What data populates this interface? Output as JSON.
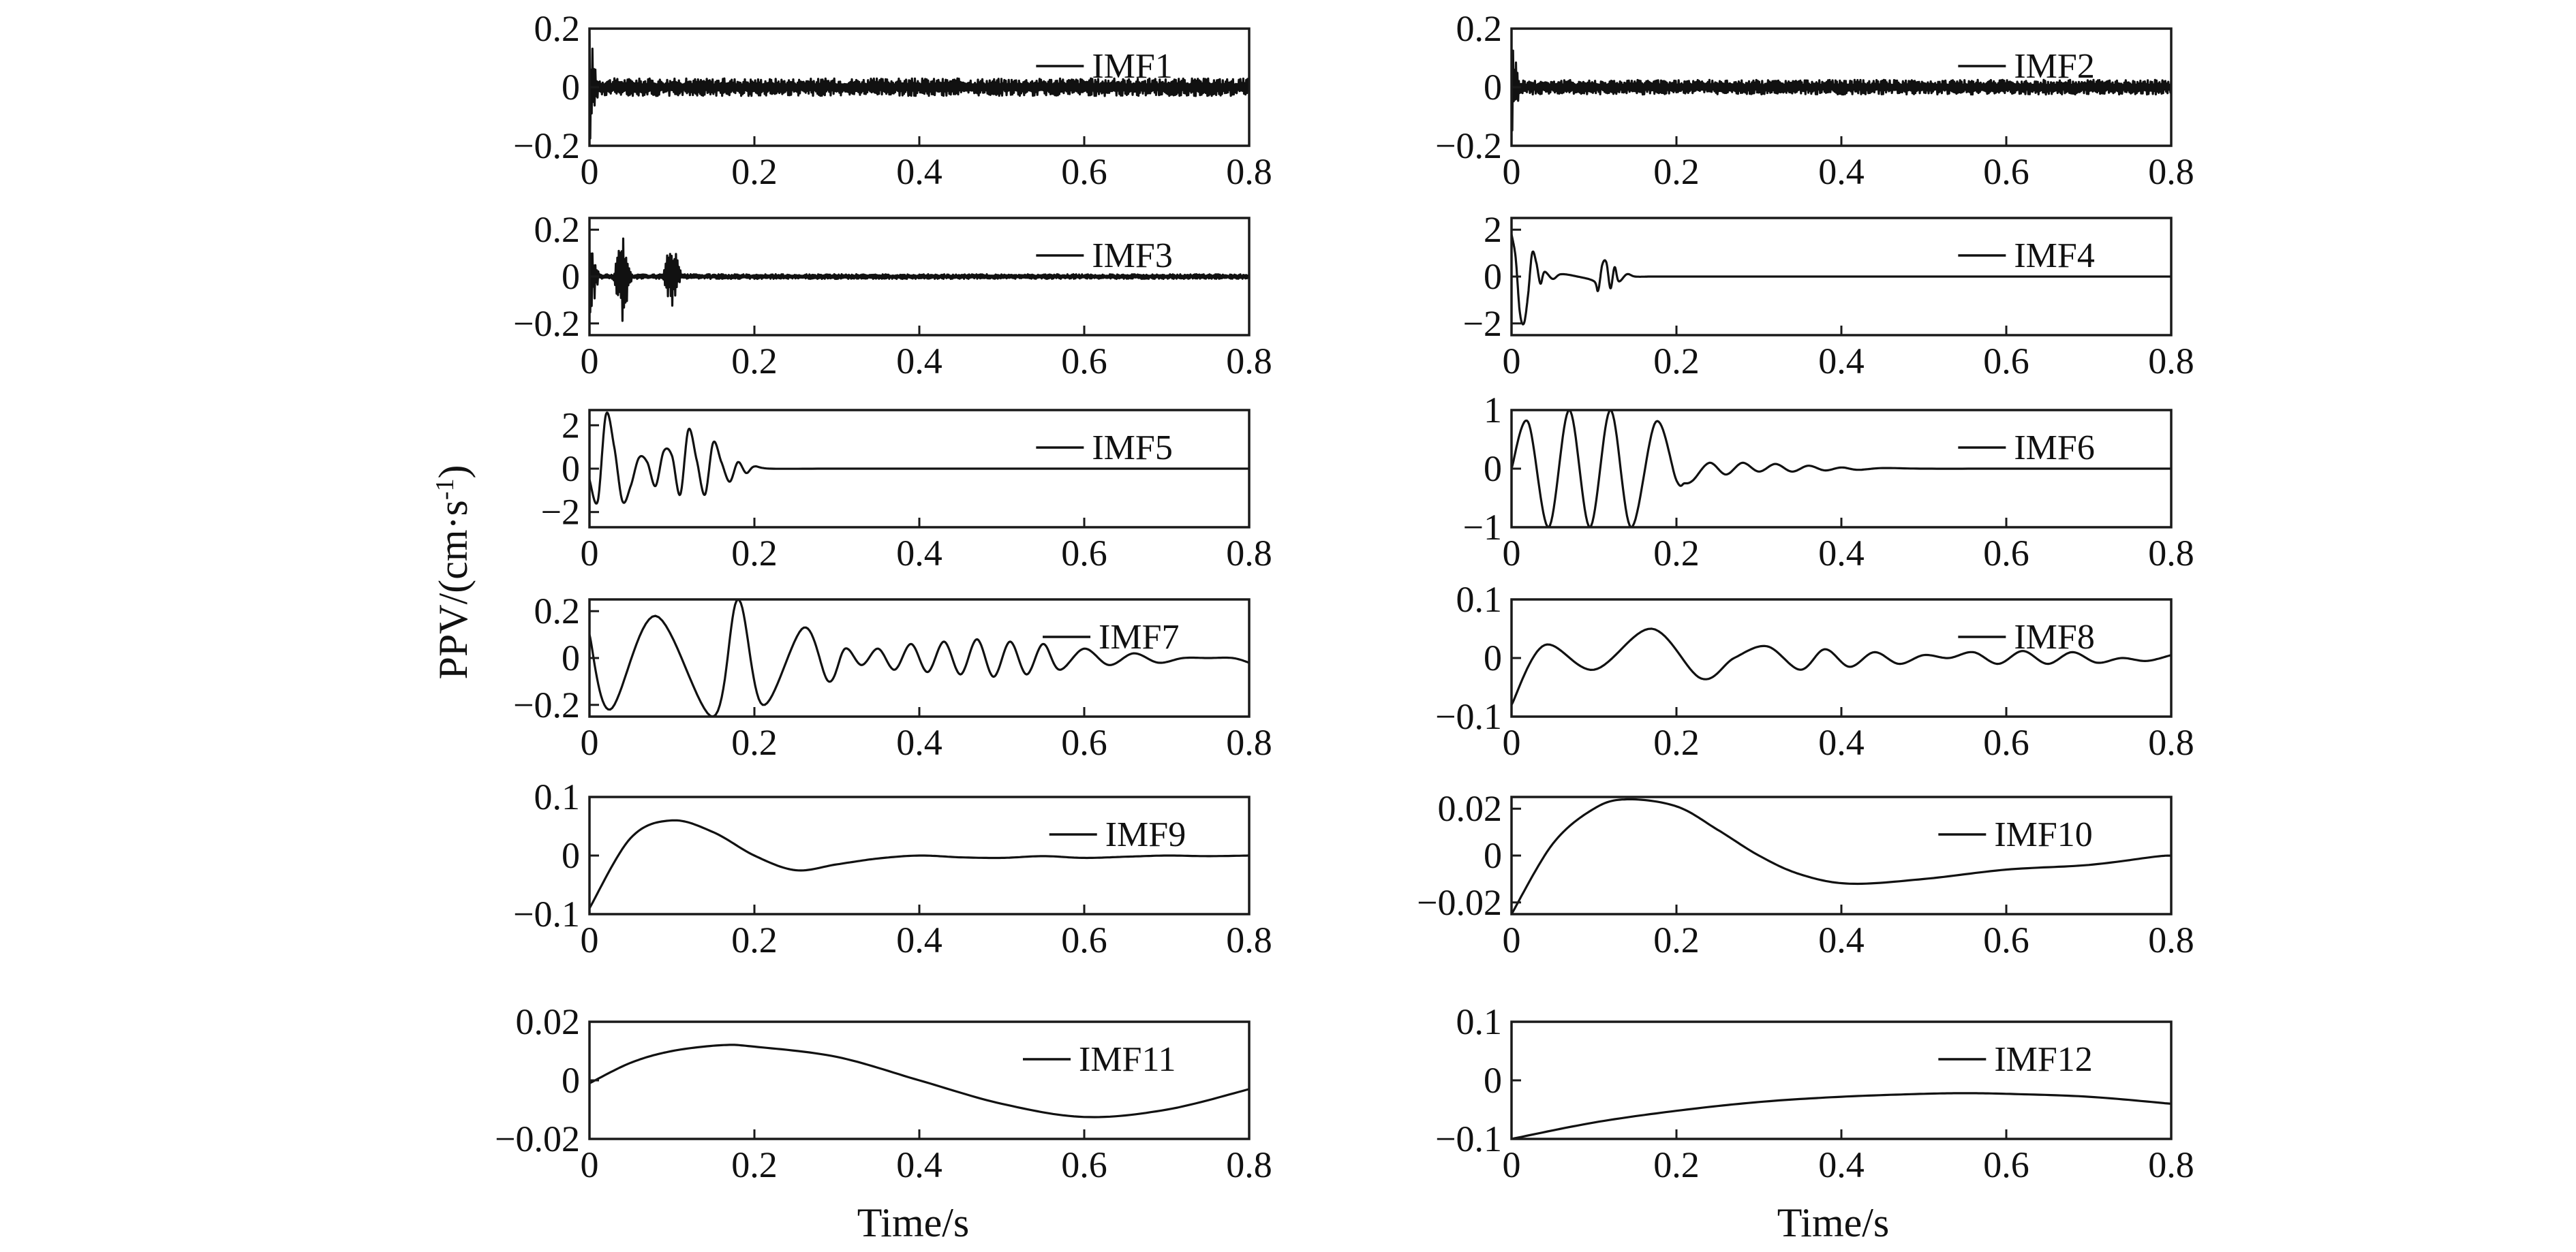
{
  "chart_data": [
    {
      "type": "line",
      "series": [
        {
          "name": "IMF1",
          "signal": "noise",
          "amplitude": 0.03,
          "burst": {
            "t": 0.0,
            "amp": 0.2
          }
        }
      ],
      "xlabel": "",
      "ylabel": "",
      "xlim": [
        0,
        0.8
      ],
      "ylim": [
        -0.2,
        0.2
      ],
      "xticks": [
        "0",
        "0.2",
        "0.4",
        "0.6",
        "0.8"
      ],
      "yticks": [
        {
          "v": 0.2,
          "label": "0.2"
        },
        {
          "v": 0,
          "label": "0"
        },
        {
          "v": -0.2,
          "label": "−0.2"
        }
      ]
    },
    {
      "type": "line",
      "series": [
        {
          "name": "IMF2",
          "signal": "noise",
          "amplitude": 0.025,
          "burst": {
            "t": 0.0,
            "amp": 0.18
          }
        }
      ],
      "xlabel": "",
      "ylabel": "",
      "xlim": [
        0,
        0.8
      ],
      "ylim": [
        -0.2,
        0.2
      ],
      "xticks": [
        "0",
        "0.2",
        "0.4",
        "0.6",
        "0.8"
      ],
      "yticks": [
        {
          "v": 0.2,
          "label": "0.2"
        },
        {
          "v": 0,
          "label": "0"
        },
        {
          "v": -0.2,
          "label": "−0.2"
        }
      ]
    },
    {
      "type": "line",
      "series": [
        {
          "name": "IMF3",
          "signal": "noise",
          "amplitude": 0.01,
          "bursts": [
            {
              "t": 0.0,
              "amp": 0.2
            },
            {
              "t": 0.04,
              "amp": 0.2
            },
            {
              "t": 0.1,
              "amp": 0.18
            }
          ]
        }
      ],
      "xlabel": "",
      "ylabel": "",
      "xlim": [
        0,
        0.8
      ],
      "ylim": [
        -0.25,
        0.25
      ],
      "xticks": [
        "0",
        "0.2",
        "0.4",
        "0.6",
        "0.8"
      ],
      "yticks": [
        {
          "v": 0.2,
          "label": "0.2"
        },
        {
          "v": 0,
          "label": "0"
        },
        {
          "v": -0.2,
          "label": "−0.2"
        }
      ]
    },
    {
      "type": "line",
      "series": [
        {
          "name": "IMF4",
          "x": [
            0,
            0.005,
            0.01,
            0.015,
            0.02,
            0.025,
            0.03,
            0.035,
            0.04,
            0.05,
            0.06,
            0.08,
            0.1,
            0.105,
            0.11,
            0.115,
            0.12,
            0.125,
            0.13,
            0.14,
            0.15,
            0.17,
            0.2,
            0.3,
            0.5,
            0.8
          ],
          "y": [
            1.8,
            0.8,
            -1.5,
            -2.0,
            -0.8,
            1.0,
            0.6,
            -0.3,
            0.2,
            -0.1,
            0.1,
            0.0,
            -0.2,
            -0.6,
            0.5,
            0.6,
            -0.5,
            0.4,
            -0.2,
            0.1,
            0.0,
            0.0,
            0.0,
            0.0,
            0.0,
            0.0
          ]
        }
      ],
      "xlabel": "",
      "ylabel": "",
      "xlim": [
        0,
        0.8
      ],
      "ylim": [
        -2.5,
        2.5
      ],
      "xticks": [
        "0",
        "0.2",
        "0.4",
        "0.6",
        "0.8"
      ],
      "yticks": [
        {
          "v": 2,
          "label": "2"
        },
        {
          "v": 0,
          "label": "0"
        },
        {
          "v": -2,
          "label": "−2"
        }
      ]
    },
    {
      "type": "line",
      "series": [
        {
          "name": "IMF5",
          "x": [
            0,
            0.01,
            0.02,
            0.03,
            0.04,
            0.05,
            0.06,
            0.07,
            0.08,
            0.09,
            0.1,
            0.11,
            0.12,
            0.13,
            0.14,
            0.15,
            0.16,
            0.17,
            0.18,
            0.19,
            0.2,
            0.22,
            0.3,
            0.5,
            0.8
          ],
          "y": [
            -0.5,
            -1.5,
            2.5,
            1.0,
            -1.5,
            -0.8,
            0.5,
            0.3,
            -0.8,
            0.8,
            0.6,
            -1.2,
            1.8,
            0.4,
            -1.2,
            1.2,
            0.3,
            -0.6,
            0.3,
            -0.2,
            0.1,
            0.0,
            0.0,
            0.0,
            0.0
          ]
        }
      ],
      "xlabel": "",
      "ylabel": "",
      "xlim": [
        0,
        0.8
      ],
      "ylim": [
        -2.7,
        2.7
      ],
      "xticks": [
        "0",
        "0.2",
        "0.4",
        "0.6",
        "0.8"
      ],
      "yticks": [
        {
          "v": 2,
          "label": "2"
        },
        {
          "v": 0,
          "label": "0"
        },
        {
          "v": -2,
          "label": "−2"
        }
      ]
    },
    {
      "type": "line",
      "series": [
        {
          "name": "IMF6",
          "x": [
            0,
            0.02,
            0.045,
            0.07,
            0.095,
            0.12,
            0.145,
            0.175,
            0.2,
            0.21,
            0.22,
            0.24,
            0.26,
            0.28,
            0.3,
            0.32,
            0.34,
            0.36,
            0.38,
            0.4,
            0.42,
            0.45,
            0.5,
            0.6,
            0.7,
            0.8
          ],
          "y": [
            0.0,
            0.8,
            -1.0,
            1.0,
            -1.0,
            1.0,
            -1.0,
            0.8,
            -0.2,
            -0.25,
            -0.2,
            0.1,
            -0.1,
            0.1,
            -0.05,
            0.08,
            -0.05,
            0.05,
            -0.03,
            0.02,
            -0.02,
            0.01,
            0.0,
            0.0,
            0.0,
            0.0
          ]
        }
      ],
      "xlabel": "",
      "ylabel": "",
      "xlim": [
        0,
        0.8
      ],
      "ylim": [
        -1,
        1
      ],
      "xticks": [
        "0",
        "0.2",
        "0.4",
        "0.6",
        "0.8"
      ],
      "yticks": [
        {
          "v": 1,
          "label": "1"
        },
        {
          "v": 0,
          "label": "0"
        },
        {
          "v": -1,
          "label": "−1"
        }
      ]
    },
    {
      "type": "line",
      "series": [
        {
          "name": "IMF7",
          "x": [
            0,
            0.025,
            0.08,
            0.15,
            0.18,
            0.21,
            0.26,
            0.29,
            0.31,
            0.33,
            0.35,
            0.37,
            0.39,
            0.41,
            0.43,
            0.45,
            0.47,
            0.49,
            0.51,
            0.53,
            0.55,
            0.57,
            0.6,
            0.63,
            0.66,
            0.69,
            0.72,
            0.75,
            0.78,
            0.8
          ],
          "y": [
            0.1,
            -0.22,
            0.18,
            -0.25,
            0.25,
            -0.2,
            0.13,
            -0.1,
            0.04,
            -0.03,
            0.04,
            -0.05,
            0.06,
            -0.06,
            0.07,
            -0.07,
            0.08,
            -0.08,
            0.07,
            -0.07,
            0.06,
            -0.05,
            0.04,
            -0.03,
            0.02,
            -0.02,
            0.0,
            0.0,
            0.0,
            -0.02
          ]
        }
      ],
      "xlabel": "",
      "ylabel": "",
      "xlim": [
        0,
        0.8
      ],
      "ylim": [
        -0.25,
        0.25
      ],
      "xticks": [
        "0",
        "0.2",
        "0.4",
        "0.6",
        "0.8"
      ],
      "yticks": [
        {
          "v": 0.2,
          "label": "0.2"
        },
        {
          "v": 0,
          "label": "0"
        },
        {
          "v": -0.2,
          "label": "−0.2"
        }
      ]
    },
    {
      "type": "line",
      "series": [
        {
          "name": "IMF8",
          "x": [
            0,
            0.04,
            0.1,
            0.17,
            0.23,
            0.27,
            0.31,
            0.35,
            0.38,
            0.41,
            0.44,
            0.47,
            0.5,
            0.53,
            0.56,
            0.59,
            0.62,
            0.65,
            0.68,
            0.71,
            0.74,
            0.77,
            0.8
          ],
          "y": [
            -0.08,
            0.022,
            -0.02,
            0.05,
            -0.035,
            0.0,
            0.02,
            -0.02,
            0.015,
            -0.015,
            0.01,
            -0.01,
            0.005,
            0.0,
            0.01,
            -0.01,
            0.012,
            -0.01,
            0.01,
            -0.008,
            0.0,
            -0.005,
            0.005
          ]
        }
      ],
      "xlabel": "",
      "ylabel": "",
      "xlim": [
        0,
        0.8
      ],
      "ylim": [
        -0.1,
        0.1
      ],
      "xticks": [
        "0",
        "0.2",
        "0.4",
        "0.6",
        "0.8"
      ],
      "yticks": [
        {
          "v": 0.1,
          "label": "0.1"
        },
        {
          "v": 0,
          "label": "0"
        },
        {
          "v": -0.1,
          "label": "−0.1"
        }
      ]
    },
    {
      "type": "line",
      "series": [
        {
          "name": "IMF9",
          "x": [
            0,
            0.05,
            0.1,
            0.15,
            0.2,
            0.25,
            0.3,
            0.35,
            0.4,
            0.45,
            0.5,
            0.55,
            0.6,
            0.65,
            0.7,
            0.75,
            0.8
          ],
          "y": [
            -0.09,
            0.03,
            0.06,
            0.04,
            0.0,
            -0.025,
            -0.015,
            -0.005,
            0.0,
            -0.003,
            -0.004,
            -0.001,
            -0.004,
            -0.002,
            0.0,
            -0.001,
            0.0
          ]
        }
      ],
      "xlabel": "",
      "ylabel": "",
      "xlim": [
        0,
        0.8
      ],
      "ylim": [
        -0.1,
        0.1
      ],
      "xticks": [
        "0",
        "0.2",
        "0.4",
        "0.6",
        "0.8"
      ],
      "yticks": [
        {
          "v": 0.1,
          "label": "0.1"
        },
        {
          "v": 0,
          "label": "0"
        },
        {
          "v": -0.1,
          "label": "−0.1"
        }
      ]
    },
    {
      "type": "line",
      "series": [
        {
          "name": "IMF10",
          "x": [
            0,
            0.05,
            0.1,
            0.14,
            0.2,
            0.25,
            0.3,
            0.35,
            0.41,
            0.5,
            0.6,
            0.7,
            0.78,
            0.8
          ],
          "y": [
            -0.025,
            0.005,
            0.02,
            0.024,
            0.021,
            0.011,
            0.0,
            -0.008,
            -0.012,
            -0.01,
            -0.006,
            -0.004,
            -0.0005,
            0.0
          ]
        }
      ],
      "xlabel": "",
      "ylabel": "",
      "xlim": [
        0,
        0.8
      ],
      "ylim": [
        -0.025,
        0.025
      ],
      "xticks": [
        "0",
        "0.2",
        "0.4",
        "0.6",
        "0.8"
      ],
      "yticks": [
        {
          "v": 0.02,
          "label": "0.02"
        },
        {
          "v": 0,
          "label": "0"
        },
        {
          "v": -0.02,
          "label": "−0.02"
        }
      ]
    },
    {
      "type": "line",
      "series": [
        {
          "name": "IMF11",
          "x": [
            0,
            0.05,
            0.1,
            0.16,
            0.2,
            0.3,
            0.4,
            0.5,
            0.6,
            0.7,
            0.8
          ],
          "y": [
            -0.001,
            0.006,
            0.01,
            0.012,
            0.0115,
            0.008,
            0.0,
            -0.008,
            -0.0125,
            -0.01,
            -0.003
          ]
        }
      ],
      "xlabel": "",
      "ylabel": "",
      "xlim": [
        0,
        0.8
      ],
      "ylim": [
        -0.02,
        0.02
      ],
      "xticks": [
        "0",
        "0.2",
        "0.4",
        "0.6",
        "0.8"
      ],
      "yticks": [
        {
          "v": 0.02,
          "label": "0.02"
        },
        {
          "v": 0,
          "label": "0"
        },
        {
          "v": -0.02,
          "label": "−0.02"
        }
      ]
    },
    {
      "type": "line",
      "series": [
        {
          "name": "IMF12",
          "x": [
            0,
            0.1,
            0.2,
            0.3,
            0.4,
            0.5,
            0.55,
            0.6,
            0.7,
            0.8
          ],
          "y": [
            -0.1,
            -0.072,
            -0.052,
            -0.037,
            -0.028,
            -0.023,
            -0.022,
            -0.023,
            -0.028,
            -0.04
          ]
        }
      ],
      "xlabel": "",
      "ylabel": "",
      "xlim": [
        0,
        0.8
      ],
      "ylim": [
        -0.1,
        0.1
      ],
      "xticks": [
        "0",
        "0.2",
        "0.4",
        "0.6",
        "0.8"
      ],
      "yticks": [
        {
          "v": 0.1,
          "label": "0.1"
        },
        {
          "v": 0,
          "label": "0"
        },
        {
          "v": -0.1,
          "label": "−0.1"
        }
      ]
    }
  ],
  "labels": {
    "ylabel": "PPV/(cm·s",
    "ylabel_sup": "-1",
    "ylabel_close": ")",
    "xlabel_left": "Time/s",
    "xlabel_right": "Time/s"
  }
}
